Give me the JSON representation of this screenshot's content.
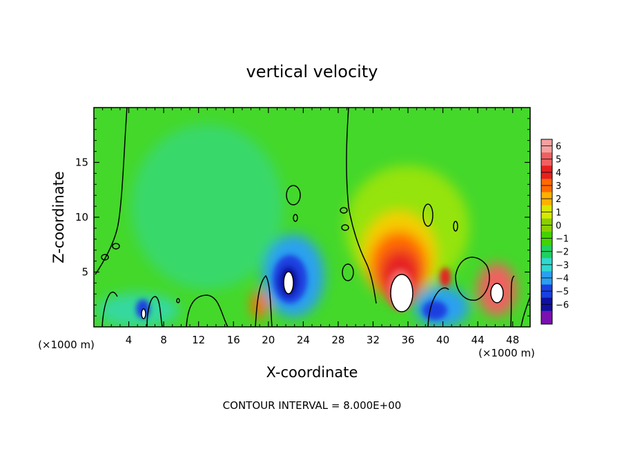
{
  "chart_data": {
    "type": "heatmap",
    "title": "vertical velocity",
    "xlabel": "X-coordinate",
    "ylabel": "Z-coordinate",
    "x_unit_left": "(×1000 m)",
    "x_unit_right": "(×1000 m)",
    "footer": "CONTOUR INTERVAL = 8.000E+00",
    "xlim": [
      0,
      50
    ],
    "ylim": [
      0,
      20
    ],
    "x_ticks": [
      "4",
      "8",
      "12",
      "16",
      "20",
      "24",
      "28",
      "32",
      "36",
      "40",
      "44",
      "48"
    ],
    "x_tick_values": [
      4,
      8,
      12,
      16,
      20,
      24,
      28,
      32,
      36,
      40,
      44,
      48
    ],
    "y_ticks": [
      "5",
      "10",
      "15"
    ],
    "y_tick_values": [
      5,
      10,
      15
    ],
    "colorbar": {
      "levels": [
        "6",
        "5",
        "4",
        "3",
        "2",
        "1",
        "0",
        "−1",
        "−2",
        "−3",
        "−4",
        "−5",
        "−6"
      ],
      "colors": [
        "#f4a0a0",
        "#f06060",
        "#e52020",
        "#ff6a00",
        "#ffb000",
        "#d8e800",
        "#8ad000",
        "#44d200",
        "#20d060",
        "#30d8d0",
        "#2aa0f0",
        "#1a40e0",
        "#1010a0",
        "#7a10b0"
      ]
    },
    "background_color": "#44d82a",
    "features": [
      {
        "x": 22,
        "z": 4.5,
        "value": -6
      },
      {
        "x": 35,
        "z": 4.0,
        "value": 6
      },
      {
        "x": 46,
        "z": 3.0,
        "value": 5
      },
      {
        "x": 40,
        "z": 4.5,
        "value": 4
      },
      {
        "x": 38.5,
        "z": 2.0,
        "value": -5
      },
      {
        "x": 6,
        "z": 1.5,
        "value": -5
      },
      {
        "x": 19,
        "z": 2.0,
        "value": 4
      },
      {
        "x": 14,
        "z": 8.0,
        "value": -2
      }
    ]
  }
}
